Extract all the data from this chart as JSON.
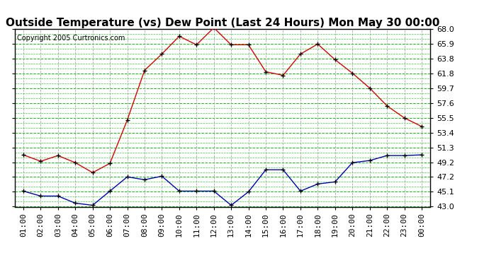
{
  "title": "Outside Temperature (vs) Dew Point (Last 24 Hours) Mon May 30 00:00",
  "copyright": "Copyright 2005 Curtronics.com",
  "x_labels": [
    "01:00",
    "02:00",
    "03:00",
    "04:00",
    "05:00",
    "06:00",
    "07:00",
    "08:00",
    "09:00",
    "10:00",
    "11:00",
    "12:00",
    "13:00",
    "14:00",
    "15:00",
    "16:00",
    "17:00",
    "18:00",
    "19:00",
    "20:00",
    "21:00",
    "22:00",
    "23:00",
    "00:00"
  ],
  "temp_data": [
    50.3,
    49.4,
    50.2,
    49.2,
    47.8,
    49.1,
    55.2,
    62.2,
    64.5,
    67.0,
    65.8,
    68.2,
    65.8,
    65.8,
    62.0,
    61.5,
    64.5,
    65.9,
    63.7,
    61.8,
    59.7,
    57.2,
    55.5,
    54.3
  ],
  "dew_data": [
    45.2,
    44.5,
    44.5,
    43.5,
    43.2,
    45.2,
    47.2,
    46.8,
    47.3,
    45.2,
    45.2,
    45.2,
    43.2,
    45.1,
    48.2,
    48.2,
    45.2,
    46.2,
    46.5,
    49.2,
    49.5,
    50.2,
    50.2,
    50.3
  ],
  "ylim_min": 43.0,
  "ylim_max": 68.0,
  "yticks": [
    43.0,
    45.1,
    47.2,
    49.2,
    51.3,
    53.4,
    55.5,
    57.6,
    59.7,
    61.8,
    63.8,
    65.9,
    68.0
  ],
  "temp_color": "#dd0000",
  "dew_color": "#0000bb",
  "bg_color": "#ffffff",
  "plot_bg": "#ffffff",
  "grid_color_h": "#00cc00",
  "grid_color_v": "#aaaaaa",
  "title_fontsize": 11,
  "axis_fontsize": 8,
  "copyright_fontsize": 7
}
